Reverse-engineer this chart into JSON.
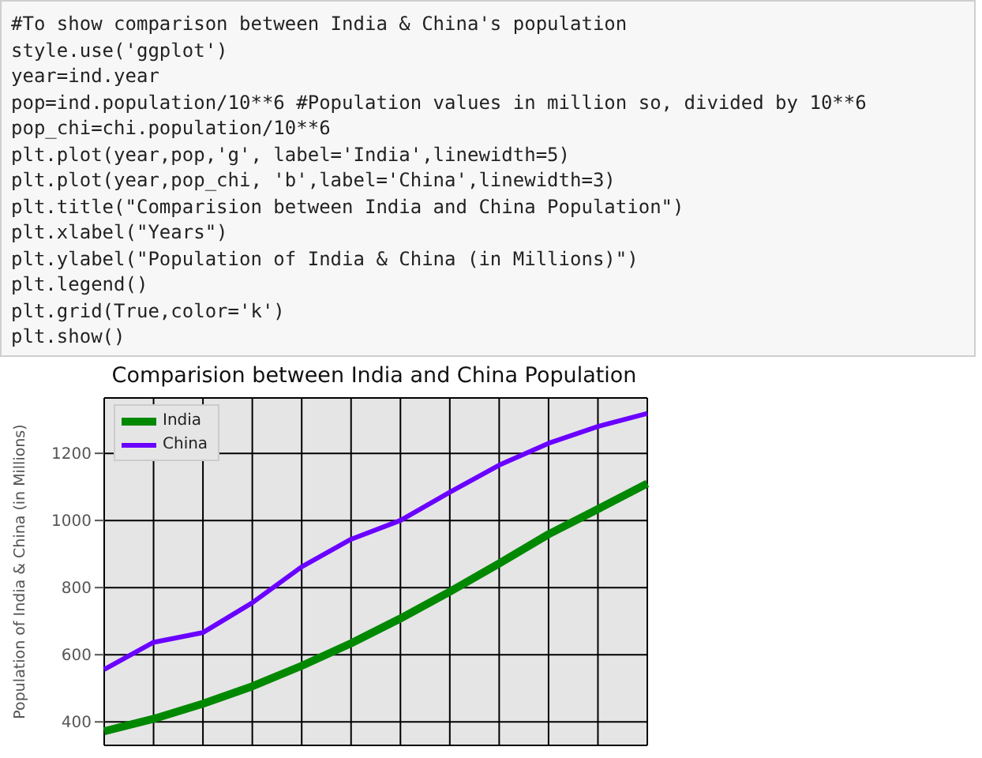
{
  "chart_data": {
    "type": "line",
    "title": "Comparision between India and China Population",
    "ylabel": "Population of India & China (in Millions)",
    "annotations": [
      "#To show comparison between India & China's population",
      "style.use('ggplot')",
      "year=ind.year",
      "pop=ind.population/10**6 #Population values in million so, divided by 10**6",
      "pop_chi=chi.population/10**6",
      "plt.plot(year,pop,'g', label='India',linewidth=5)",
      "plt.plot(year,pop_chi, 'b',label='China',linewidth=3)",
      "plt.title(\"Comparision between India and China Population\")",
      "plt.xlabel(\"Years\")",
      "plt.ylabel(\"Population of India & China (in Millions)\")",
      "plt.legend()",
      "plt.grid(True,color='k')",
      "plt.show()"
    ],
    "categories": [
      null,
      null,
      null,
      null,
      null,
      null,
      null,
      null,
      null,
      null,
      null,
      null
    ],
    "series": [
      {
        "name": "India",
        "color": "#008800",
        "values": [
          372,
          409,
          454,
          506,
          567,
          634,
          708,
          788,
          872,
          959,
          1034,
          1110
        ]
      },
      {
        "name": "China",
        "color": "#6a00ff",
        "values": [
          556,
          637,
          666,
          755,
          862,
          944,
          1000,
          1084,
          1165,
          1230,
          1280,
          1319
        ]
      }
    ],
    "ylim": [
      330,
      1365
    ],
    "yticks": [
      400,
      600,
      800,
      1000,
      1200
    ],
    "grid": true,
    "legend": "top left",
    "marker": "none",
    "line_style": "solid"
  }
}
